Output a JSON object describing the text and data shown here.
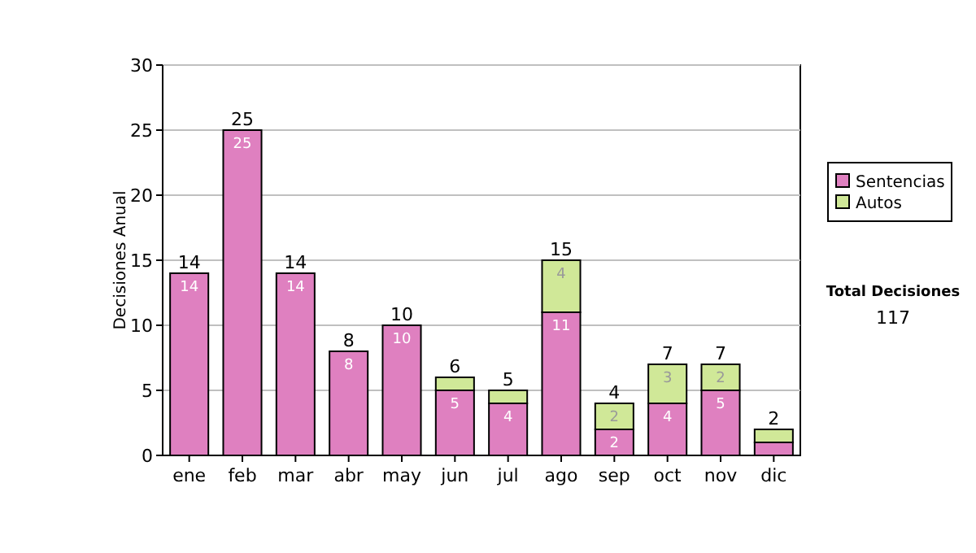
{
  "chart_data": {
    "type": "bar",
    "stacked": true,
    "ylabel": "Decisiones Anual",
    "categories": [
      "ene",
      "feb",
      "mar",
      "abr",
      "may",
      "jun",
      "jul",
      "ago",
      "sep",
      "oct",
      "nov",
      "dic"
    ],
    "series": [
      {
        "name": "Sentencias",
        "color": "#df80c0",
        "values": [
          14,
          25,
          14,
          8,
          10,
          5,
          4,
          11,
          2,
          4,
          5,
          1
        ],
        "value_labels": [
          "14",
          "25",
          "14",
          "8",
          "10",
          "5",
          "4",
          "11",
          "2",
          "4",
          "5",
          null
        ]
      },
      {
        "name": "Autos",
        "color": "#d0e898",
        "values": [
          0,
          0,
          0,
          0,
          0,
          1,
          1,
          4,
          2,
          3,
          2,
          1
        ],
        "value_labels": [
          null,
          null,
          null,
          null,
          null,
          null,
          null,
          "4",
          "2",
          "3",
          "2",
          null
        ]
      }
    ],
    "totals": [
      "14",
      "25",
      "14",
      "8",
      "10",
      "6",
      "5",
      "15",
      "4",
      "7",
      "7",
      "2"
    ],
    "ylim": [
      0,
      30
    ],
    "yticks": [
      0,
      5,
      10,
      15,
      20,
      25,
      30
    ],
    "grid": "y",
    "legend": "right",
    "annotations": [
      "Total Decisiones",
      "117"
    ]
  }
}
